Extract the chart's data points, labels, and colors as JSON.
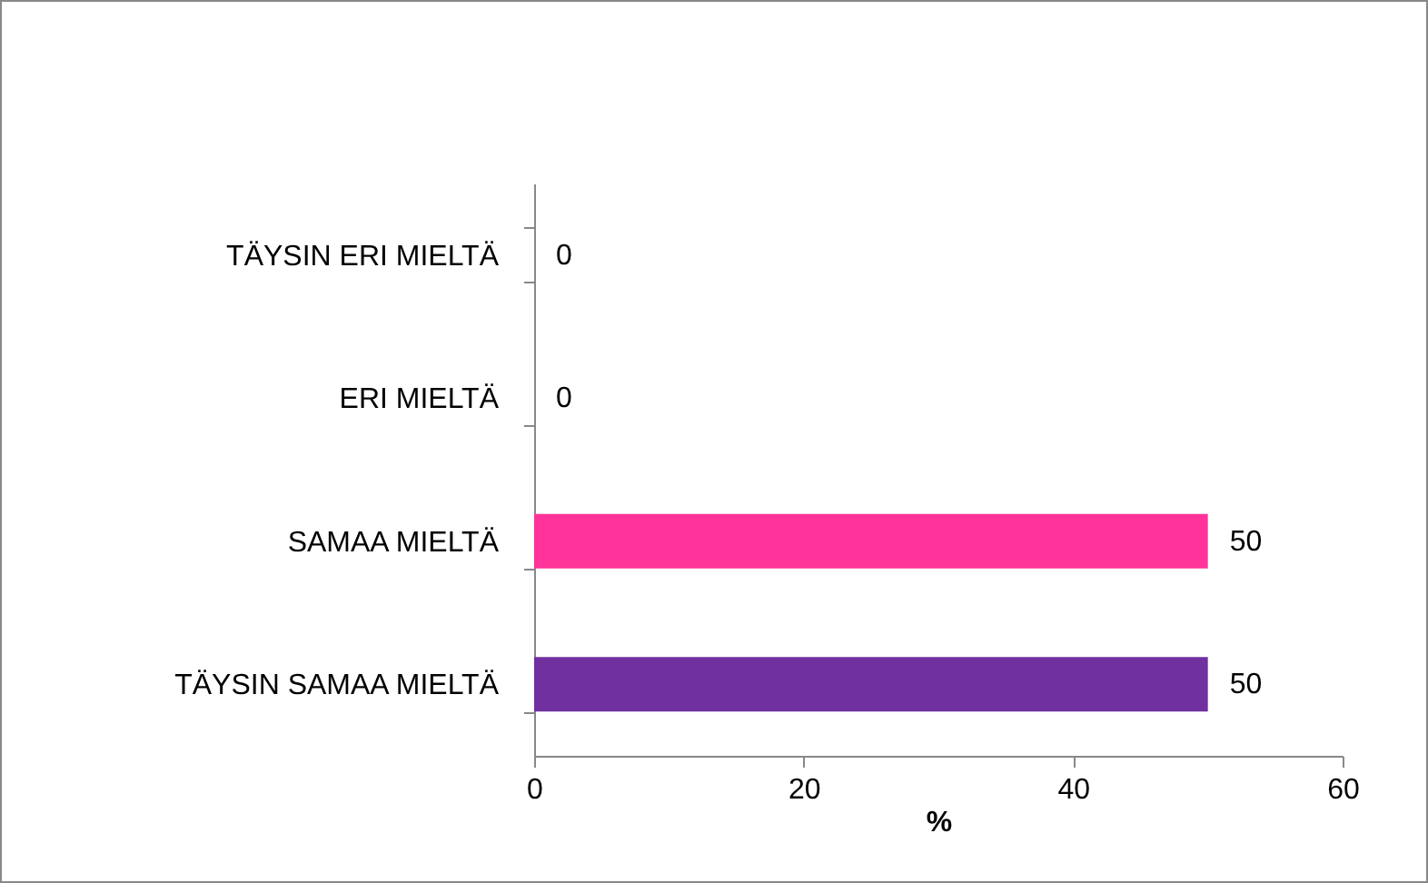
{
  "chart_data": {
    "type": "bar",
    "orientation": "horizontal",
    "categories": [
      "TÄYSIN ERI MIELTÄ",
      "ERI MIELTÄ",
      "SAMAA MIELTÄ",
      "TÄYSIN SAMAA MIELTÄ"
    ],
    "values": [
      0,
      0,
      50,
      50
    ],
    "colors": [
      "#4f81bd",
      "#c0504d",
      "#ff3399",
      "#7030a0"
    ],
    "xlim": [
      0,
      60
    ],
    "xticks": [
      0,
      20,
      40,
      60
    ],
    "xlabel": "%",
    "data_labels": true,
    "grid": false
  }
}
